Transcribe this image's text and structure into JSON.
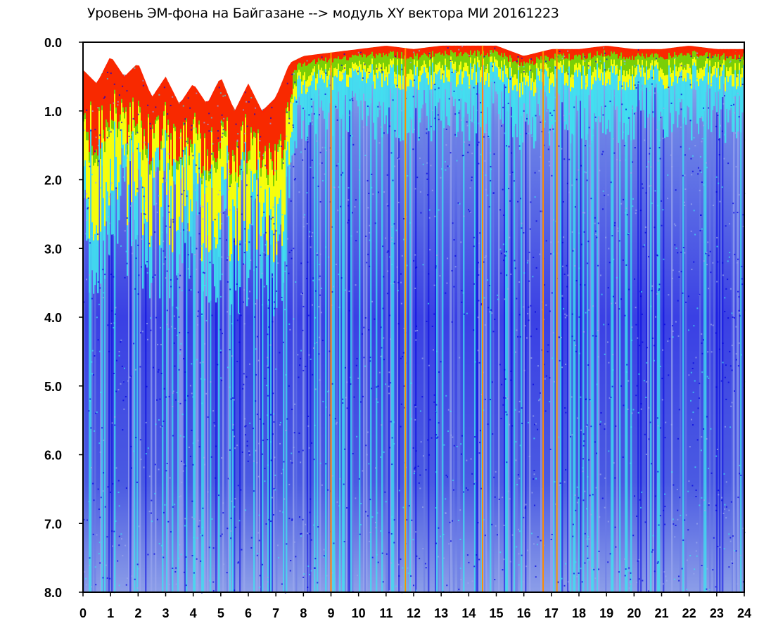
{
  "chart_data": {
    "type": "heatmap",
    "title": "Уровень ЭМ-фона на Байгазане   -->  модуль XY вектора МИ   20161223",
    "xlabel": "",
    "ylabel": "",
    "xlim": [
      0,
      24
    ],
    "ylim": [
      8.0,
      0.0
    ],
    "y_inverted": true,
    "x_ticks": [
      "0",
      "1",
      "2",
      "3",
      "4",
      "5",
      "6",
      "7",
      "8",
      "9",
      "10",
      "11",
      "12",
      "13",
      "14",
      "15",
      "16",
      "17",
      "18",
      "19",
      "20",
      "21",
      "22",
      "23",
      "24"
    ],
    "y_ticks": [
      "0.0",
      "1.0",
      "2.0",
      "3.0",
      "4.0",
      "5.0",
      "6.0",
      "7.0",
      "8.0"
    ],
    "colorscale": [
      "#0000e0",
      "#6a7ce6",
      "#9aa6ec",
      "#40e0f0",
      "#ffff00",
      "#00a000",
      "#ff2000",
      "#ff8c00"
    ],
    "background_color": "#ffffff",
    "grid": false,
    "legend": "none",
    "orange_vertical_lines_x": [
      9.0,
      11.7,
      14.5,
      16.7,
      17.2
    ],
    "upper_boundary_by_hour": [
      {
        "x": 0,
        "y": 0.4
      },
      {
        "x": 0.5,
        "y": 0.6
      },
      {
        "x": 1,
        "y": 0.2
      },
      {
        "x": 1.5,
        "y": 0.5
      },
      {
        "x": 2,
        "y": 0.3
      },
      {
        "x": 2.5,
        "y": 0.8
      },
      {
        "x": 3,
        "y": 0.5
      },
      {
        "x": 3.5,
        "y": 0.9
      },
      {
        "x": 4,
        "y": 0.6
      },
      {
        "x": 4.5,
        "y": 0.9
      },
      {
        "x": 5,
        "y": 0.5
      },
      {
        "x": 5.5,
        "y": 1.0
      },
      {
        "x": 6,
        "y": 0.6
      },
      {
        "x": 6.5,
        "y": 1.0
      },
      {
        "x": 7,
        "y": 0.8
      },
      {
        "x": 7.5,
        "y": 0.3
      },
      {
        "x": 8,
        "y": 0.2
      },
      {
        "x": 9,
        "y": 0.15
      },
      {
        "x": 10,
        "y": 0.1
      },
      {
        "x": 11,
        "y": 0.05
      },
      {
        "x": 12,
        "y": 0.1
      },
      {
        "x": 13,
        "y": 0.05
      },
      {
        "x": 14,
        "y": 0.05
      },
      {
        "x": 15,
        "y": 0.05
      },
      {
        "x": 16,
        "y": 0.2
      },
      {
        "x": 17,
        "y": 0.1
      },
      {
        "x": 18,
        "y": 0.1
      },
      {
        "x": 19,
        "y": 0.05
      },
      {
        "x": 20,
        "y": 0.1
      },
      {
        "x": 21,
        "y": 0.1
      },
      {
        "x": 22,
        "y": 0.05
      },
      {
        "x": 23,
        "y": 0.1
      },
      {
        "x": 24,
        "y": 0.1
      }
    ]
  }
}
